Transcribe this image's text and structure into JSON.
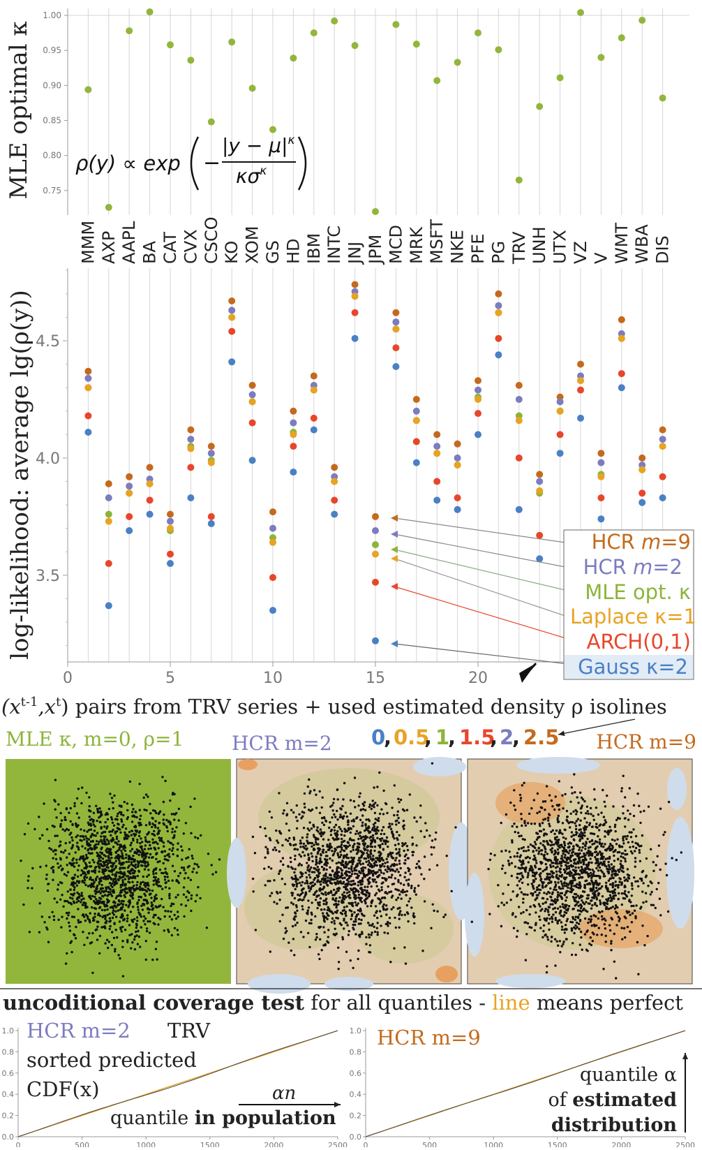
{
  "colors": {
    "hcr9": "#c46a1e",
    "hcr2": "#7c7cc0",
    "mle": "#8db43a",
    "laplace": "#e8a323",
    "arch": "#e8462b",
    "gauss": "#4a80c4",
    "dot": "#92b63c"
  },
  "tickers": [
    "MMM",
    "AXP",
    "AAPL",
    "BA",
    "CAT",
    "CVX",
    "CSCO",
    "KO",
    "XOM",
    "GS",
    "HD",
    "IBM",
    "INTC",
    "JNJ",
    "JPM",
    "MCD",
    "MRK",
    "MSFT",
    "NKE",
    "PFE",
    "PG",
    "TRV",
    "UNH",
    "UTX",
    "VZ",
    "V",
    "WMT",
    "WBA",
    "DIS"
  ],
  "top_formula": {
    "lhs": "ρ(y) ∝ exp",
    "num": "|y − μ|",
    "num_exp": "κ",
    "den": "κσ",
    "den_exp": "κ",
    "minus": "−"
  },
  "chart_data": [
    {
      "type": "scatter",
      "ylabel": "MLE optimal κ",
      "ylim": [
        0.715,
        1.01
      ],
      "yticks": [
        "0.75",
        "0.80",
        "0.85",
        "0.90",
        "0.95",
        "1.00"
      ],
      "x": [
        1,
        2,
        3,
        4,
        5,
        6,
        7,
        8,
        9,
        10,
        11,
        12,
        13,
        14,
        15,
        16,
        17,
        18,
        19,
        20,
        21,
        22,
        23,
        24,
        25,
        26,
        27,
        28,
        29
      ],
      "values": [
        0.894,
        0.726,
        0.978,
        1.005,
        0.958,
        0.936,
        0.848,
        0.962,
        0.896,
        0.837,
        0.939,
        0.975,
        0.992,
        0.957,
        0.72,
        0.987,
        0.959,
        0.907,
        0.933,
        0.975,
        0.951,
        0.765,
        0.87,
        0.911,
        1.004,
        0.94,
        0.968,
        0.993,
        0.882
      ]
    },
    {
      "type": "scatter",
      "ylabel": "log-likelihood: average lg(ρ(y))",
      "xlim": [
        0,
        30
      ],
      "ylim": [
        3.13,
        4.81
      ],
      "xticks": [
        "0",
        "5",
        "10",
        "15",
        "20"
      ],
      "yticks": [
        "3.5",
        "4.0",
        "4.5"
      ],
      "x": [
        1,
        2,
        3,
        4,
        5,
        6,
        7,
        8,
        9,
        10,
        11,
        12,
        13,
        14,
        15,
        16,
        17,
        18,
        19,
        20,
        21,
        22,
        23,
        24,
        25,
        26,
        27,
        28,
        29
      ],
      "series": [
        {
          "name": "HCR m=9",
          "values": [
            4.37,
            3.89,
            3.92,
            3.96,
            3.76,
            4.12,
            4.05,
            4.67,
            4.31,
            3.77,
            4.2,
            4.35,
            3.96,
            4.74,
            3.75,
            4.62,
            4.25,
            4.1,
            4.06,
            4.33,
            4.7,
            4.31,
            3.93,
            4.26,
            4.4,
            4.02,
            4.59,
            4.0,
            4.12
          ]
        },
        {
          "name": "HCR m=2",
          "values": [
            4.34,
            3.83,
            3.88,
            3.91,
            3.73,
            4.08,
            4.02,
            4.63,
            4.27,
            3.7,
            4.15,
            4.31,
            3.92,
            4.71,
            3.69,
            4.58,
            4.2,
            4.05,
            4.0,
            4.29,
            4.65,
            4.25,
            3.9,
            4.24,
            4.35,
            3.98,
            4.53,
            3.97,
            4.08
          ]
        },
        {
          "name": "MLE opt. κ",
          "values": [
            4.3,
            3.76,
            3.85,
            3.89,
            3.69,
            4.05,
            3.99,
            4.6,
            4.24,
            3.66,
            4.11,
            4.29,
            3.9,
            4.69,
            3.63,
            4.55,
            4.16,
            4.02,
            3.97,
            4.26,
            4.62,
            4.18,
            3.85,
            4.2,
            4.33,
            3.93,
            4.51,
            3.95,
            4.05
          ]
        },
        {
          "name": "Laplace κ=1",
          "values": [
            4.3,
            3.73,
            3.85,
            3.89,
            3.7,
            4.04,
            3.98,
            4.6,
            4.24,
            3.64,
            4.1,
            4.29,
            3.9,
            4.69,
            3.59,
            4.55,
            4.16,
            4.02,
            3.97,
            4.25,
            4.62,
            4.16,
            3.86,
            4.2,
            4.33,
            3.92,
            4.51,
            3.95,
            4.05
          ]
        },
        {
          "name": "ARCH(0,1)",
          "values": [
            4.18,
            3.55,
            3.75,
            3.82,
            3.59,
            3.96,
            3.75,
            4.54,
            4.15,
            3.49,
            4.05,
            4.17,
            3.82,
            4.62,
            3.47,
            4.47,
            4.07,
            3.9,
            3.83,
            4.19,
            4.51,
            4.0,
            3.67,
            4.1,
            4.29,
            3.83,
            4.36,
            3.85,
            3.92
          ]
        },
        {
          "name": "Gauss κ=2",
          "values": [
            4.11,
            3.37,
            3.69,
            3.76,
            3.55,
            3.83,
            3.72,
            4.41,
            3.99,
            3.35,
            3.94,
            4.12,
            3.76,
            4.51,
            3.22,
            4.39,
            3.98,
            3.82,
            3.78,
            4.1,
            4.44,
            3.78,
            3.57,
            4.02,
            4.17,
            3.74,
            4.3,
            3.81,
            3.83
          ]
        }
      ]
    },
    {
      "type": "line",
      "xlim": [
        0,
        2500
      ],
      "ylim": [
        0,
        1
      ],
      "xticks": [
        "0",
        "500",
        "1000",
        "1500",
        "2000",
        "2500"
      ],
      "yticks": [
        "0.0",
        "0.2",
        "0.4",
        "0.6",
        "0.8",
        "1.0"
      ]
    },
    {
      "type": "line",
      "xlim": [
        0,
        2500
      ],
      "ylim": [
        0,
        1
      ],
      "xticks": [
        "0",
        "500",
        "1000",
        "1500",
        "2000",
        "2500"
      ],
      "yticks": [
        "0.0",
        "0.2",
        "0.4",
        "0.6",
        "0.8",
        "1.0"
      ]
    }
  ],
  "legend": {
    "hcr9": {
      "pre": "HCR ",
      "m": "m",
      "post": "=9"
    },
    "hcr2": {
      "pre": "HCR ",
      "m": "m",
      "post": "=2"
    },
    "mle": "MLE opt. κ",
    "laplace": "Laplace κ=1",
    "arch": "ARCH(0,1)",
    "gauss": "Gauss κ=2"
  },
  "pairs": {
    "title_a": "(x",
    "title_sup1": "t-1",
    "title_b": ",x",
    "title_sup2": "t",
    "title_c": ") pairs from TRV series + used estimated density ρ isolines",
    "iso": [
      "0",
      "0.5",
      "1",
      "1.5",
      "2",
      "2.5"
    ],
    "panel1": "MLE κ, m=0, ρ=1",
    "panel2": "HCR m=2",
    "panel3": "HCR m=9"
  },
  "coverage": {
    "title_bold": "uncoditional coverage test",
    "title_mid": " for all quantiles - ",
    "title_line": "line",
    "title_end": " means perfect",
    "left_label": "HCR m=2",
    "trv": "TRV",
    "sorted1": "sorted predicted",
    "sorted2": "CDF(x)",
    "an": "αn",
    "qpop_pre": "quantile ",
    "qpop_bold": "in population",
    "right_label": "HCR m=9",
    "qalpha": "quantile α",
    "of_pre": "of ",
    "of_bold": "estimated",
    "distribution": "distribution"
  }
}
